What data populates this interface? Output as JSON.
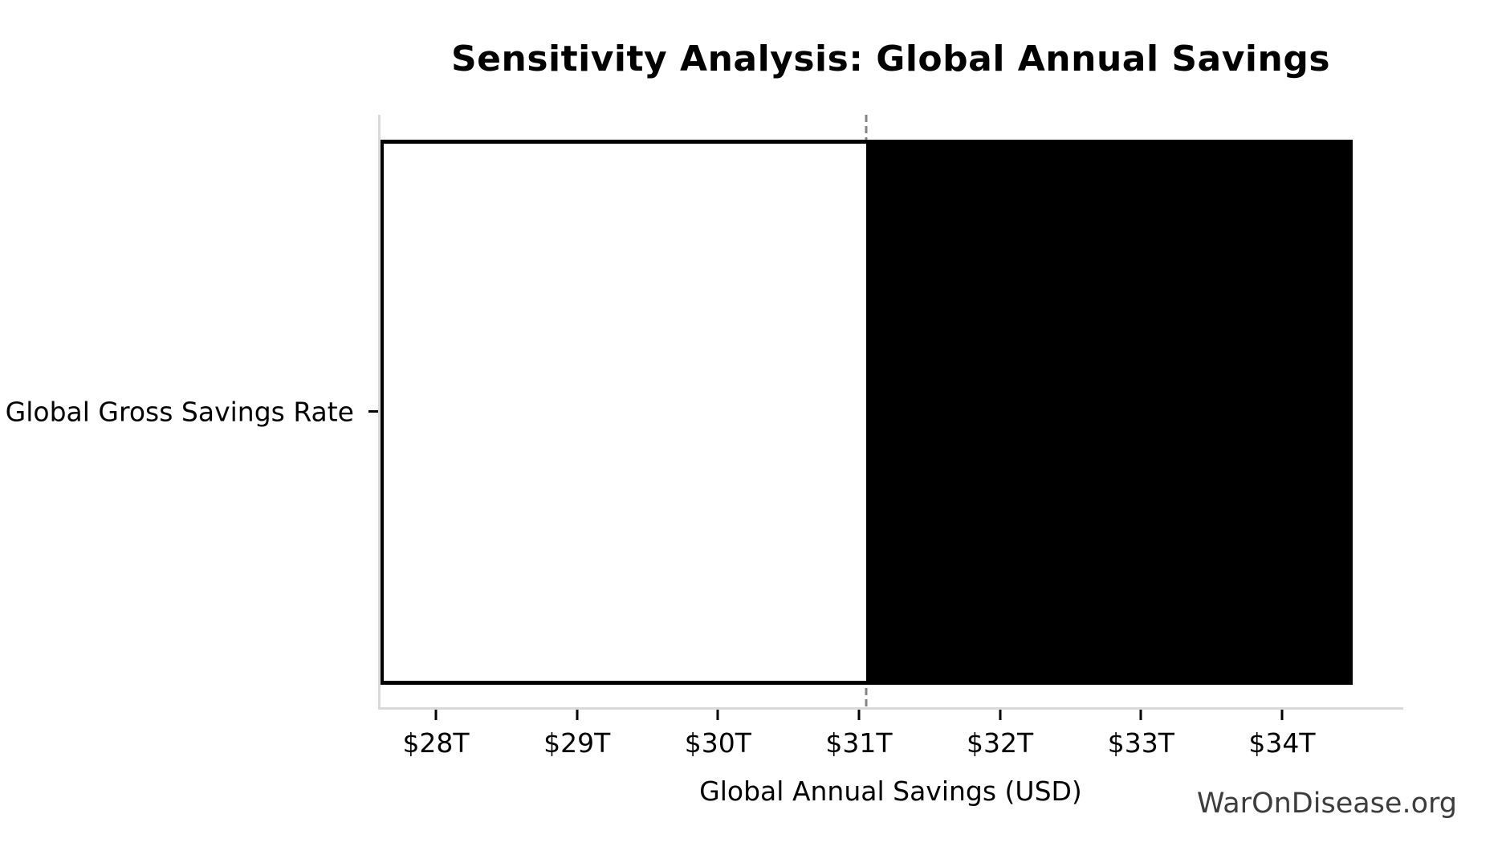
{
  "chart_data": {
    "type": "bar",
    "subtype": "tornado-sensitivity",
    "orientation": "horizontal",
    "title": "Sensitivity Analysis: Global Annual Savings",
    "xlabel": "Global Annual Savings (USD)",
    "ylabel": "",
    "categories": [
      "Global Gross Savings Rate"
    ],
    "series": [
      {
        "name": "Global Gross Savings Rate",
        "low": 27.6,
        "base": 31.05,
        "high": 34.5,
        "unit": "trillion USD"
      }
    ],
    "x_ticks": [
      {
        "value": 28,
        "label": "$28T"
      },
      {
        "value": 29,
        "label": "$29T"
      },
      {
        "value": 30,
        "label": "$30T"
      },
      {
        "value": 31,
        "label": "$31T"
      },
      {
        "value": 32,
        "label": "$32T"
      },
      {
        "value": 33,
        "label": "$33T"
      },
      {
        "value": 34,
        "label": "$34T"
      }
    ],
    "xlim": [
      27.59,
      34.86
    ],
    "base_line": {
      "value": 31.05,
      "style": "dashed",
      "color": "#848484"
    },
    "grid": false,
    "legend": false,
    "colors": {
      "bar_low_fill": "#ffffff",
      "bar_high_fill": "#000000",
      "bar_edge": "#000000",
      "spine": "#d9d9d9",
      "text": "#000000"
    }
  },
  "branding": {
    "watermark": "WarOnDisease.org"
  }
}
